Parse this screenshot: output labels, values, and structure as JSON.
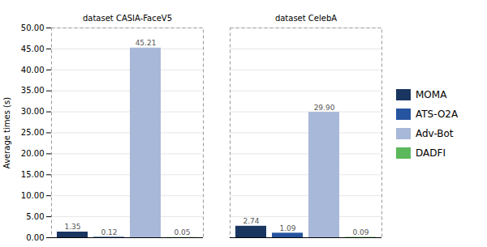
{
  "chart_data": {
    "type": "bar",
    "categories": [
      "dataset CASIA-FaceV5",
      "dataset CelebA"
    ],
    "series": [
      {
        "name": "MOMA",
        "color": "#1a3560",
        "values": [
          1.35,
          2.74
        ],
        "value_labels": [
          "1.35",
          "2.74"
        ]
      },
      {
        "name": "ATS-O2A",
        "color": "#2655a0",
        "values": [
          0.12,
          1.09
        ],
        "value_labels": [
          "0.12",
          "1.09"
        ]
      },
      {
        "name": "Adv-Bot",
        "color": "#a8b8d8",
        "values": [
          45.21,
          29.9
        ],
        "value_labels": [
          "45.21",
          "29.90"
        ]
      },
      {
        "name": "DADFI",
        "color": "#5cb85c",
        "values": [
          0.05,
          0.09
        ],
        "value_labels": [
          "0.05",
          "0.09"
        ]
      }
    ],
    "ylabel": "Average times (s)",
    "ylim": [
      0,
      50
    ],
    "yticks": [
      {
        "value": 0,
        "label": "0.00"
      },
      {
        "value": 5,
        "label": "5.00"
      },
      {
        "value": 10,
        "label": "10.00"
      },
      {
        "value": 15,
        "label": "15.00"
      },
      {
        "value": 20,
        "label": "20.00"
      },
      {
        "value": 25,
        "label": "25.00"
      },
      {
        "value": 30,
        "label": "30.00"
      },
      {
        "value": 35,
        "label": "35.00"
      },
      {
        "value": 40,
        "label": "40.00"
      },
      {
        "value": 45,
        "label": "45.00"
      },
      {
        "value": 50,
        "label": "50.00"
      }
    ],
    "grid": true,
    "data_labels": true,
    "legend": "right"
  }
}
